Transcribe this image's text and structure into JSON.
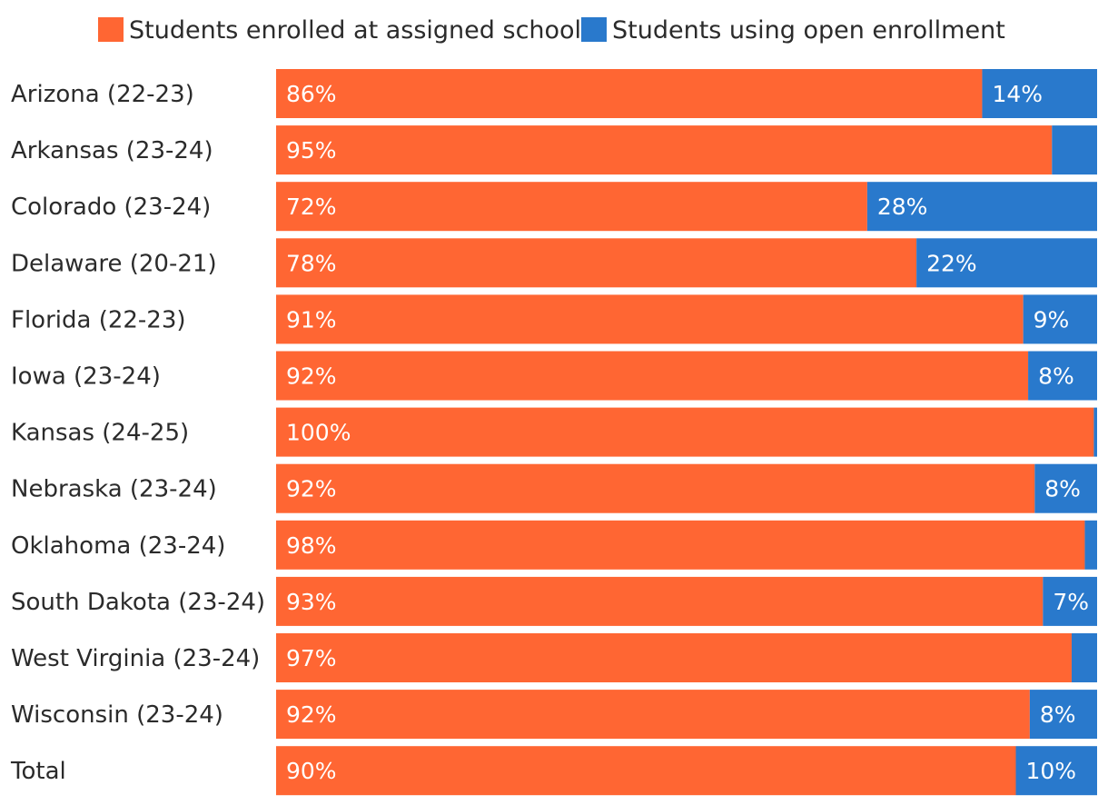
{
  "chart_data": {
    "type": "bar",
    "orientation": "horizontal",
    "stacked": true,
    "normalized": true,
    "xlim": [
      0,
      100
    ],
    "grid": false,
    "legend_position": "top",
    "categories": [
      "Arizona (22-23)",
      "Arkansas (23-24)",
      "Colorado (23-24)",
      "Delaware (20-21)",
      "Florida (22-23)",
      "Iowa (23-24)",
      "Kansas (24-25)",
      "Nebraska (23-24)",
      "Oklahoma (23-24)",
      "South Dakota (23-24)",
      "West Virginia (23-24)",
      "Wisconsin (23-24)",
      "Total"
    ],
    "series": [
      {
        "name": "Students enrolled at assigned school",
        "color": "#ff6633",
        "values": [
          86,
          94.5,
          72,
          78,
          91,
          91.6,
          99.6,
          92.4,
          98.5,
          93.4,
          96.9,
          91.8,
          90.1
        ],
        "labels": [
          "86%",
          "95%",
          "72%",
          "78%",
          "91%",
          "92%",
          "100%",
          "92%",
          "98%",
          "93%",
          "97%",
          "92%",
          "90%"
        ]
      },
      {
        "name": "Students using open enrollment",
        "color": "#2979cc",
        "values": [
          14,
          5.5,
          28,
          22,
          9,
          8.4,
          0.4,
          7.6,
          1.5,
          6.6,
          3.1,
          8.2,
          9.9
        ],
        "labels": [
          "14%",
          "",
          "28%",
          "22%",
          "9%",
          "8%",
          "",
          "8%",
          "",
          "7%",
          "",
          "8%",
          "10%"
        ]
      }
    ]
  }
}
